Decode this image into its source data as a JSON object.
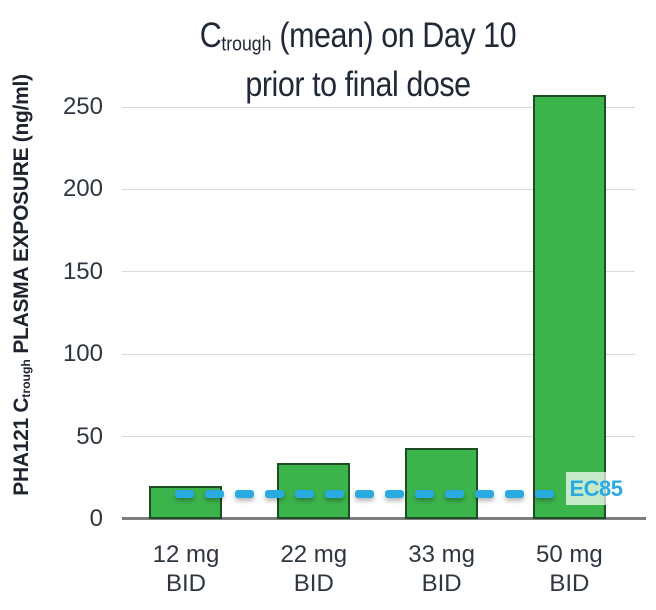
{
  "title": {
    "prefix": "C",
    "subscript": "trough",
    "line1_rest": " (mean) on Day 10",
    "line2": "prior to final dose"
  },
  "y_axis": {
    "label_prefix": "PHA121 C",
    "label_subscript": "trough",
    "label_rest": " PLASMA EXPOSURE (ng/ml)"
  },
  "chart_data": {
    "type": "bar",
    "title": "C trough (mean) on Day 10 prior to final dose",
    "categories": [
      "12 mg BID",
      "22 mg BID",
      "33 mg BID",
      "50 mg BID"
    ],
    "values": [
      20,
      34,
      43,
      257
    ],
    "xlabel": "",
    "ylabel": "PHA121 C trough PLASMA EXPOSURE (ng/ml)",
    "ylim": [
      0,
      260
    ],
    "yticks": [
      0,
      50,
      100,
      150,
      200,
      250
    ],
    "grid": true,
    "legend": false,
    "threshold_line": {
      "label": "EC85",
      "value": 15,
      "style": "dashed"
    }
  },
  "colors": {
    "bar_fill": "#3cb44c",
    "bar_border": "#1d4d22",
    "threshold_blue": "#29abe2",
    "gridline": "#d9d9d9",
    "axis_line": "#7f7f7f",
    "title_text": "#212936",
    "tick_text": "#2f3640"
  }
}
